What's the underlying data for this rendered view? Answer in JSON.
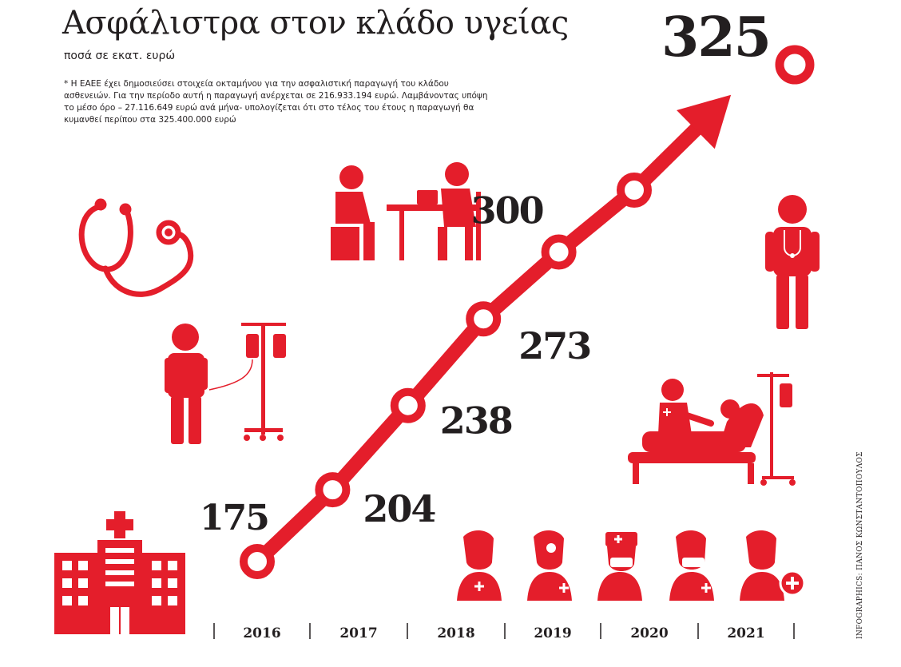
{
  "header": {
    "title": "Ασφάλιστρα στον κλάδο υγείας",
    "subtitle": "ποσά σε εκατ. ευρώ",
    "note": "* Η ΕΑΕΕ έχει δημοσιεύσει στοιχεία οκταμήνου για την ασφαλιστική παραγωγή του κλάδου ασθενειών. Για την περίοδο αυτή η παραγωγή ανέρχεται σε 216.933.194 ευρώ. Λαμβάνοντας υπόψη το μέσο όρο – 27.116.649 ευρώ ανά μήνα- υπολογίζεται ότι στο τέλος του έτους η παραγωγή θα κυμανθεί περίπου στα 325.400.000 ευρώ"
  },
  "credit": "INFOGRAPHICS: ΠΑΝΟΣ ΚΩΝΣΤΑΝΤΟΠΟΥΛΟΣ",
  "colors": {
    "accent": "#e41e2b",
    "text": "#231f20",
    "background": "#ffffff"
  },
  "chart_data": {
    "type": "line",
    "x": [
      "2016",
      "2017",
      "2018",
      "2019",
      "2020",
      "2021"
    ],
    "values": [
      175,
      204,
      238,
      273,
      300,
      325
    ],
    "value_labels": [
      "175",
      "204",
      "238",
      "273",
      "300",
      "325"
    ],
    "ylabel": "",
    "grid": false,
    "legend": "none"
  },
  "icons": [
    "hospital-icon",
    "stethoscope-icon",
    "patient-iv-icon",
    "doctor-consultation-icon",
    "doctor-icon",
    "hospital-bed-icon",
    "medical-staff-icon"
  ]
}
